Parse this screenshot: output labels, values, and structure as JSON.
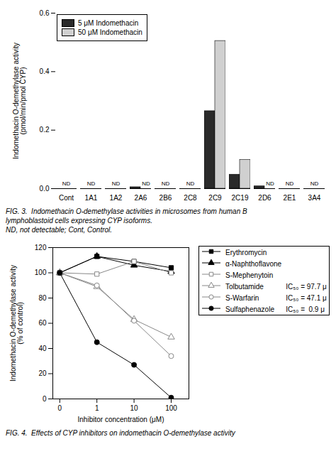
{
  "chart_data": [
    {
      "type": "bar",
      "categories": [
        "Cont",
        "1A1",
        "1A2",
        "2A6",
        "2B6",
        "2C8",
        "2C9",
        "2C19",
        "2D6",
        "2E1",
        "3A4"
      ],
      "series": [
        {
          "name": "5 μM Indomethacin",
          "color": "#2a2a2a",
          "values": [
            0,
            0,
            0,
            0.005,
            0,
            0,
            0.265,
            0.048,
            0.008,
            0,
            0
          ]
        },
        {
          "name": "50 μM Indomethacin",
          "color": "#d0d0d0",
          "values": [
            0,
            0,
            0,
            0,
            0,
            0,
            0.505,
            0.098,
            0.0,
            0,
            0
          ]
        }
      ],
      "ylabel": "Indomethacin O-demethylase activity\n(pmol/min/pmol CYP)",
      "ylim": [
        0,
        0.6
      ],
      "yticks": [
        {
          "value": 0,
          "label": "0.0"
        },
        0.2,
        0.4,
        0.6
      ],
      "legend": "upper left",
      "grid": false,
      "annotations": [
        {
          "text": "ND",
          "category": "Cont"
        },
        {
          "text": "ND",
          "category": "1A1"
        },
        {
          "text": "ND",
          "category": "1A2"
        },
        {
          "text": "ND",
          "category": "2A6",
          "series": "50 μM Indomethacin"
        },
        {
          "text": "ND",
          "category": "2B6"
        },
        {
          "text": "ND",
          "category": "2C8"
        },
        {
          "text": "ND",
          "category": "2D6",
          "series": "50 μM Indomethacin"
        },
        {
          "text": "ND",
          "category": "2E1"
        },
        {
          "text": "ND",
          "category": "3A4"
        }
      ],
      "caption": [
        "FIG. 3.  Indomethacin O-demethylase activities in microsomes from human B",
        "lymphoblastoid cells expressing CYP isoforms.",
        "ND, not detectable; Cont, Control."
      ]
    },
    {
      "type": "line",
      "x": [
        0.1,
        1,
        10,
        100
      ],
      "series": [
        {
          "name": "Erythromycin",
          "color": "black",
          "marker": "filled-square",
          "values": [
            100,
            113,
            109,
            104
          ]
        },
        {
          "name": "α-Naphthoflavone",
          "color": "black",
          "marker": "filled-triangle",
          "values": [
            100,
            113,
            106,
            101
          ]
        },
        {
          "name": "S-Mephenytoin",
          "color": "#888888",
          "marker": "open-square",
          "values": [
            100,
            99,
            109,
            100
          ]
        },
        {
          "name": "Tolbutamide",
          "color": "#888888",
          "marker": "open-triangle",
          "values": [
            100,
            89,
            63,
            49
          ],
          "ic50": "IC₅₀ = 97.7 μ"
        },
        {
          "name": "S-Warfarin",
          "color": "#888888",
          "marker": "open-circle",
          "values": [
            100,
            90,
            62,
            34
          ],
          "ic50": "IC₅₀ = 47.1 μ"
        },
        {
          "name": "Sulfaphenazole",
          "color": "black",
          "marker": "filled-circle",
          "values": [
            100,
            45,
            27,
            1
          ],
          "ic50": "IC₅₀ =  0.9 μ"
        }
      ],
      "xlabel": "Inhibitor concentration (μM)",
      "ylabel": "Indomethacin O-demethylase activity\n(% of control)",
      "log": "x",
      "xlim": [
        0.065,
        300
      ],
      "xticks": [
        {
          "value": 0.1,
          "label": "0"
        },
        1,
        10,
        100
      ],
      "ylim": [
        0,
        120
      ],
      "yticks": [
        0,
        20,
        40,
        60,
        80,
        100,
        120
      ],
      "line_style": "solid",
      "grid": false,
      "legend": "right",
      "caption": [
        "FIG. 4.  Effects of CYP inhibitors on indomethacin O-demethylase activity"
      ]
    }
  ]
}
